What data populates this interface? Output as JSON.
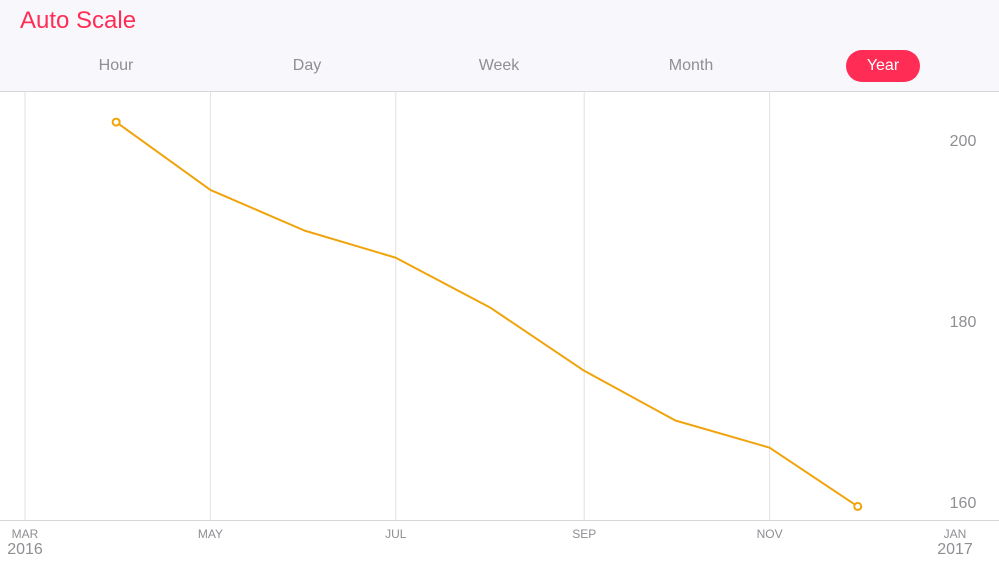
{
  "header": {
    "title": "Auto Scale",
    "tabs": [
      {
        "label": "Hour",
        "selected": false
      },
      {
        "label": "Day",
        "selected": false
      },
      {
        "label": "Week",
        "selected": false
      },
      {
        "label": "Month",
        "selected": false
      },
      {
        "label": "Year",
        "selected": true
      }
    ],
    "accent_color": "#ff2d55"
  },
  "chart_data": {
    "type": "line",
    "series": [
      {
        "color": "#f0a30a",
        "x": [
          "2016-03-31",
          "2016-05-01",
          "2016-06-01",
          "2016-07-01",
          "2016-08-01",
          "2016-09-01",
          "2016-10-01",
          "2016-11-01",
          "2016-11-30"
        ],
        "y": [
          202,
          194.5,
          190,
          187,
          181.5,
          174.5,
          169,
          166,
          159.5
        ]
      }
    ],
    "x_ticks": [
      {
        "date": "2016-03-01",
        "month": "MAR",
        "year": "2016"
      },
      {
        "date": "2016-05-01",
        "month": "MAY",
        "year": ""
      },
      {
        "date": "2016-07-01",
        "month": "JUL",
        "year": ""
      },
      {
        "date": "2016-09-01",
        "month": "SEP",
        "year": ""
      },
      {
        "date": "2016-11-01",
        "month": "NOV",
        "year": ""
      },
      {
        "date": "2017-01-01",
        "month": "JAN",
        "year": "2017"
      }
    ],
    "y_ticks": [
      200,
      180,
      160
    ],
    "xlim": [
      "2016-03-01",
      "2017-01-01"
    ],
    "ylim": [
      158,
      204
    ],
    "y_axis_position": "right",
    "grid": "vertical",
    "markers": "endpoints"
  }
}
